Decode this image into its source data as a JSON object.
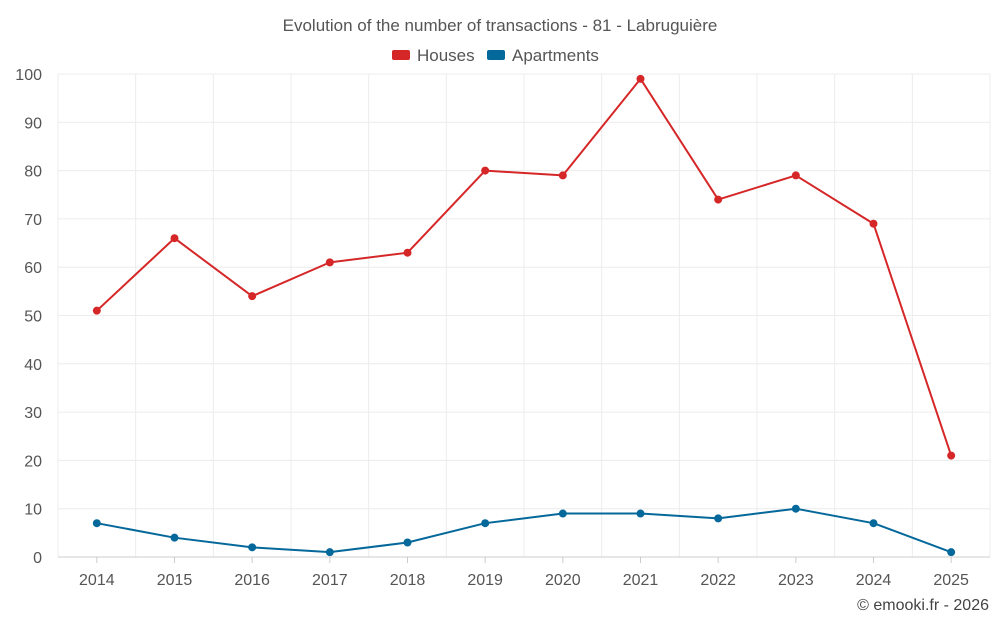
{
  "chart_data": {
    "type": "line",
    "title": "Evolution of the number of transactions - 81 - Labruguière",
    "categories": [
      "2014",
      "2015",
      "2016",
      "2017",
      "2018",
      "2019",
      "2020",
      "2021",
      "2022",
      "2023",
      "2024",
      "2025"
    ],
    "series": [
      {
        "name": "Houses",
        "color": "#d62728",
        "values": [
          51,
          66,
          54,
          61,
          63,
          80,
          79,
          99,
          74,
          79,
          69,
          21
        ]
      },
      {
        "name": "Apartments",
        "color": "#05689a",
        "values": [
          7,
          4,
          2,
          1,
          3,
          7,
          9,
          9,
          8,
          10,
          7,
          1
        ]
      }
    ],
    "ylim": [
      0,
      100
    ],
    "yticks": [
      0,
      10,
      20,
      30,
      40,
      50,
      60,
      70,
      80,
      90,
      100
    ],
    "xlabel": "",
    "ylabel": "",
    "grid": true,
    "legend_position": "top-center"
  },
  "credit": "© emooki.fr - 2026"
}
